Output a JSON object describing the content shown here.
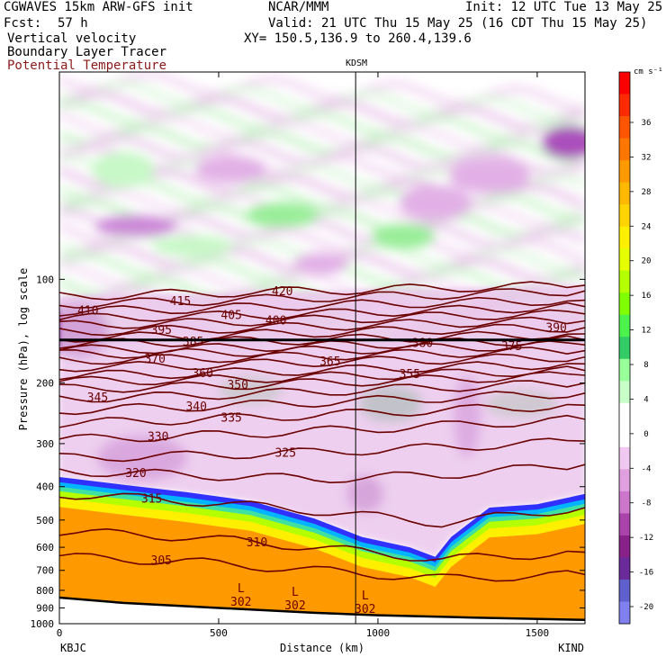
{
  "header": {
    "model": "CGWAVES 15km ARW-GFS init",
    "org": "NCAR/MMM",
    "init": "Init: 12 UTC Tue 13 May 25",
    "fcst_label": "Fcst:",
    "fcst_value": "57 h",
    "valid": "Valid: 21 UTC Thu 15 May 25 (16 CDT Thu 15 May 25)",
    "field1": "Vertical velocity",
    "field2": "Boundary Layer Tracer",
    "field3": "Potential Temperature",
    "xy": "XY= 150.5,136.9 to 260.4,139.6"
  },
  "colors": {
    "theta_contour": "#6b0000",
    "field3_text": "#8b1a1a",
    "tropopause": "#000000",
    "ground_fill": "#ffffff"
  },
  "chart_data": {
    "type": "heatmap",
    "xlabel": "Distance (km)",
    "ylabel": "Pressure (hPa), log scale",
    "xlim": [
      0,
      1650
    ],
    "ylim": [
      1000,
      25
    ],
    "y_scale": "log",
    "x_ticks": [
      0,
      500,
      1000,
      1500
    ],
    "y_ticks": [
      100,
      200,
      300,
      400,
      500,
      600,
      700,
      800,
      900,
      1000
    ],
    "endpoints": {
      "left": "KBJC",
      "right": "KIND"
    },
    "marker": {
      "label": "KDSM",
      "x": 930
    },
    "colorbar": {
      "unit": "cm s⁻¹",
      "labels": [
        "36",
        "32",
        "28",
        "24",
        "20",
        "16",
        "12",
        "8",
        "4",
        "0",
        "-4",
        "-8",
        "-12",
        "-16",
        "-20"
      ]
    },
    "theta_labels": [
      "420",
      "415",
      "410",
      "405",
      "400",
      "395",
      "390",
      "385",
      "380",
      "375",
      "370",
      "365",
      "360",
      "355",
      "350",
      "345",
      "340",
      "335",
      "330",
      "325",
      "320",
      "315",
      "310",
      "305",
      "302"
    ],
    "low_markers": [
      {
        "letter": "L",
        "value": "302",
        "x": 570,
        "p": 820
      },
      {
        "letter": "L",
        "value": "302",
        "x": 740,
        "p": 840
      },
      {
        "letter": "L",
        "value": "302",
        "x": 960,
        "p": 860
      }
    ],
    "ground_surface": [
      {
        "x": 0,
        "p": 840
      },
      {
        "x": 200,
        "p": 870
      },
      {
        "x": 500,
        "p": 900
      },
      {
        "x": 800,
        "p": 930
      },
      {
        "x": 1000,
        "p": 945
      },
      {
        "x": 1300,
        "p": 960
      },
      {
        "x": 1650,
        "p": 975
      }
    ],
    "tropopause_p": 150,
    "boundary_layer_top": [
      {
        "x": 0,
        "p": 375
      },
      {
        "x": 200,
        "p": 395
      },
      {
        "x": 400,
        "p": 415
      },
      {
        "x": 600,
        "p": 440
      },
      {
        "x": 800,
        "p": 495
      },
      {
        "x": 950,
        "p": 560
      },
      {
        "x": 1100,
        "p": 600
      },
      {
        "x": 1180,
        "p": 640
      },
      {
        "x": 1230,
        "p": 560
      },
      {
        "x": 1350,
        "p": 460
      },
      {
        "x": 1500,
        "p": 450
      },
      {
        "x": 1650,
        "p": 420
      }
    ],
    "theta_lines": [
      {
        "theta": 420,
        "points": [
          {
            "x": 0,
            "p": 112
          },
          {
            "x": 400,
            "p": 110
          },
          {
            "x": 800,
            "p": 108
          },
          {
            "x": 1200,
            "p": 106
          },
          {
            "x": 1650,
            "p": 104
          }
        ],
        "label_x": 700
      },
      {
        "theta": 415,
        "points": [
          {
            "x": 0,
            "p": 118
          },
          {
            "x": 400,
            "p": 116
          },
          {
            "x": 800,
            "p": 113
          },
          {
            "x": 1200,
            "p": 111
          },
          {
            "x": 1650,
            "p": 108
          }
        ],
        "label_x": 380
      },
      {
        "theta": 410,
        "points": [
          {
            "x": 0,
            "p": 124
          },
          {
            "x": 400,
            "p": 122
          },
          {
            "x": 800,
            "p": 119
          },
          {
            "x": 1200,
            "p": 117
          },
          {
            "x": 1650,
            "p": 115
          }
        ],
        "label_x": 90
      },
      {
        "theta": 405,
        "points": [
          {
            "x": 0,
            "p": 130
          },
          {
            "x": 400,
            "p": 128
          },
          {
            "x": 800,
            "p": 126
          },
          {
            "x": 1200,
            "p": 123
          },
          {
            "x": 1650,
            "p": 120
          }
        ],
        "label_x": 540
      },
      {
        "theta": 400,
        "points": [
          {
            "x": 0,
            "p": 136
          },
          {
            "x": 400,
            "p": 134
          },
          {
            "x": 800,
            "p": 131
          },
          {
            "x": 1200,
            "p": 128
          },
          {
            "x": 1650,
            "p": 126
          }
        ],
        "label_x": 680
      },
      {
        "theta": 395,
        "points": [
          {
            "x": 0,
            "p": 142
          },
          {
            "x": 400,
            "p": 140
          },
          {
            "x": 800,
            "p": 137
          },
          {
            "x": 1200,
            "p": 134
          },
          {
            "x": 1650,
            "p": 132
          }
        ],
        "label_x": 320
      },
      {
        "theta": 390,
        "points": [
          {
            "x": 0,
            "p": 148
          },
          {
            "x": 400,
            "p": 146
          },
          {
            "x": 800,
            "p": 143
          },
          {
            "x": 1200,
            "p": 140
          },
          {
            "x": 1650,
            "p": 138
          }
        ],
        "label_x": 1560
      },
      {
        "theta": 385,
        "points": [
          {
            "x": 0,
            "p": 154
          },
          {
            "x": 400,
            "p": 152
          },
          {
            "x": 800,
            "p": 150
          },
          {
            "x": 1200,
            "p": 147
          },
          {
            "x": 1650,
            "p": 144
          }
        ],
        "label_x": 420
      },
      {
        "theta": 380,
        "points": [
          {
            "x": 0,
            "p": 160
          },
          {
            "x": 400,
            "p": 159
          },
          {
            "x": 800,
            "p": 156
          },
          {
            "x": 1200,
            "p": 153
          },
          {
            "x": 1650,
            "p": 150
          }
        ],
        "label_x": 1140
      },
      {
        "theta": 375,
        "points": [
          {
            "x": 0,
            "p": 165
          },
          {
            "x": 400,
            "p": 164
          },
          {
            "x": 800,
            "p": 161
          },
          {
            "x": 1200,
            "p": 158
          },
          {
            "x": 1650,
            "p": 155
          }
        ],
        "label_x": 1420
      },
      {
        "theta": 370,
        "points": [
          {
            "x": 0,
            "p": 172
          },
          {
            "x": 400,
            "p": 170
          },
          {
            "x": 800,
            "p": 167
          },
          {
            "x": 1200,
            "p": 164
          },
          {
            "x": 1650,
            "p": 161
          }
        ],
        "label_x": 300
      },
      {
        "theta": 365,
        "points": [
          {
            "x": 0,
            "p": 180
          },
          {
            "x": 400,
            "p": 178
          },
          {
            "x": 800,
            "p": 174
          },
          {
            "x": 1200,
            "p": 171
          },
          {
            "x": 1650,
            "p": 168
          }
        ],
        "label_x": 850
      },
      {
        "theta": 360,
        "points": [
          {
            "x": 0,
            "p": 190
          },
          {
            "x": 400,
            "p": 188
          },
          {
            "x": 800,
            "p": 184
          },
          {
            "x": 1200,
            "p": 180
          },
          {
            "x": 1650,
            "p": 176
          }
        ],
        "label_x": 450
      },
      {
        "theta": 355,
        "points": [
          {
            "x": 0,
            "p": 198
          },
          {
            "x": 400,
            "p": 196
          },
          {
            "x": 800,
            "p": 192
          },
          {
            "x": 1200,
            "p": 188
          },
          {
            "x": 1650,
            "p": 184
          }
        ],
        "label_x": 1100
      },
      {
        "theta": 350,
        "points": [
          {
            "x": 0,
            "p": 208
          },
          {
            "x": 400,
            "p": 205
          },
          {
            "x": 800,
            "p": 200
          },
          {
            "x": 1200,
            "p": 195
          },
          {
            "x": 1650,
            "p": 190
          }
        ],
        "label_x": 560
      },
      {
        "theta": 345,
        "points": [
          {
            "x": 0,
            "p": 222
          },
          {
            "x": 400,
            "p": 218
          },
          {
            "x": 800,
            "p": 212
          },
          {
            "x": 1200,
            "p": 206
          },
          {
            "x": 1650,
            "p": 200
          }
        ],
        "label_x": 120
      },
      {
        "theta": 340,
        "points": [
          {
            "x": 0,
            "p": 240
          },
          {
            "x": 400,
            "p": 235
          },
          {
            "x": 800,
            "p": 228
          },
          {
            "x": 1200,
            "p": 221
          },
          {
            "x": 1650,
            "p": 214
          }
        ],
        "label_x": 430
      },
      {
        "theta": 335,
        "points": [
          {
            "x": 0,
            "p": 262
          },
          {
            "x": 400,
            "p": 256
          },
          {
            "x": 800,
            "p": 248
          },
          {
            "x": 1200,
            "p": 240
          },
          {
            "x": 1650,
            "p": 232
          }
        ],
        "label_x": 540
      },
      {
        "theta": 330,
        "points": [
          {
            "x": 0,
            "p": 292
          },
          {
            "x": 400,
            "p": 285
          },
          {
            "x": 800,
            "p": 276
          },
          {
            "x": 1200,
            "p": 266
          },
          {
            "x": 1650,
            "p": 255
          }
        ],
        "label_x": 310
      },
      {
        "theta": 325,
        "points": [
          {
            "x": 0,
            "p": 330
          },
          {
            "x": 400,
            "p": 325
          },
          {
            "x": 800,
            "p": 318
          },
          {
            "x": 1200,
            "p": 308
          },
          {
            "x": 1650,
            "p": 295
          }
        ],
        "label_x": 710
      },
      {
        "theta": 320,
        "points": [
          {
            "x": 0,
            "p": 360
          },
          {
            "x": 400,
            "p": 370
          },
          {
            "x": 800,
            "p": 380
          },
          {
            "x": 1200,
            "p": 370
          },
          {
            "x": 1650,
            "p": 345
          }
        ],
        "label_x": 240
      },
      {
        "theta": 315,
        "points": [
          {
            "x": 0,
            "p": 420
          },
          {
            "x": 400,
            "p": 440
          },
          {
            "x": 800,
            "p": 470
          },
          {
            "x": 1200,
            "p": 510
          },
          {
            "x": 1650,
            "p": 460
          }
        ],
        "label_x": 290
      },
      {
        "theta": 310,
        "points": [
          {
            "x": 0,
            "p": 540
          },
          {
            "x": 400,
            "p": 560
          },
          {
            "x": 800,
            "p": 600
          },
          {
            "x": 1200,
            "p": 650
          },
          {
            "x": 1650,
            "p": 620
          }
        ],
        "label_x": 620
      },
      {
        "theta": 305,
        "points": [
          {
            "x": 0,
            "p": 640
          },
          {
            "x": 400,
            "p": 660
          },
          {
            "x": 800,
            "p": 700
          },
          {
            "x": 1200,
            "p": 740
          },
          {
            "x": 1650,
            "p": 720
          }
        ],
        "label_x": 320
      }
    ],
    "shading_blobs": [
      {
        "x": 200,
        "p": 48,
        "w": 70,
        "h": 40,
        "level": 2
      },
      {
        "x": 540,
        "p": 48,
        "w": 80,
        "h": 30,
        "level": -3
      },
      {
        "x": 1600,
        "p": 40,
        "w": 60,
        "h": 36,
        "level": -6
      },
      {
        "x": 1350,
        "p": 50,
        "w": 90,
        "h": 40,
        "level": -3
      },
      {
        "x": 1180,
        "p": 60,
        "w": 80,
        "h": 40,
        "level": -3
      },
      {
        "x": 700,
        "p": 65,
        "w": 80,
        "h": 28,
        "level": 3
      },
      {
        "x": 240,
        "p": 70,
        "w": 90,
        "h": 24,
        "level": -4
      },
      {
        "x": 1080,
        "p": 75,
        "w": 70,
        "h": 28,
        "level": 3
      },
      {
        "x": 420,
        "p": 80,
        "w": 90,
        "h": 24,
        "level": 2
      },
      {
        "x": 820,
        "p": 90,
        "w": 60,
        "h": 24,
        "level": -3
      },
      {
        "x": 60,
        "p": 140,
        "w": 70,
        "h": 60,
        "level": -9
      },
      {
        "x": 260,
        "p": 330,
        "w": 100,
        "h": 50,
        "level": -7
      },
      {
        "x": 600,
        "p": 210,
        "w": 70,
        "h": 30,
        "level": 4
      },
      {
        "x": 1040,
        "p": 230,
        "w": 70,
        "h": 40,
        "level": 6
      },
      {
        "x": 1280,
        "p": 250,
        "w": 30,
        "h": 90,
        "level": -6
      },
      {
        "x": 1450,
        "p": 230,
        "w": 80,
        "h": 30,
        "level": 4
      },
      {
        "x": 960,
        "p": 420,
        "w": 40,
        "h": 40,
        "level": -8
      }
    ]
  }
}
